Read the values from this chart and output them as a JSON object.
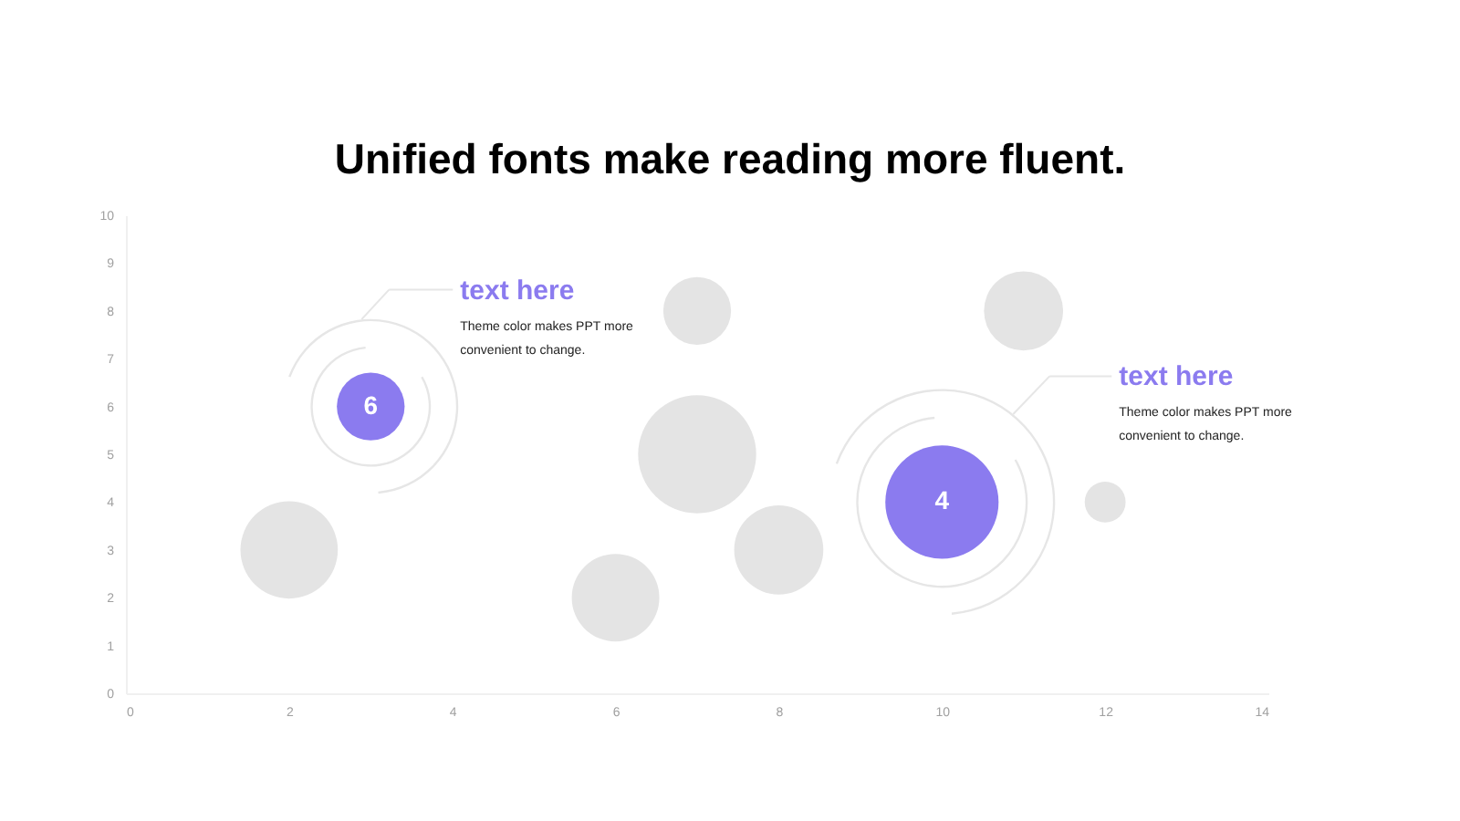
{
  "chart_data": {
    "type": "bubble",
    "title": "Unified fonts make reading more fluent.",
    "x": [
      2,
      3,
      6,
      7,
      7,
      8,
      10,
      11,
      12
    ],
    "values": [
      3,
      6,
      2,
      8,
      5,
      3,
      4,
      8,
      4
    ],
    "sizes": [
      0.68,
      0.33,
      0.55,
      0.33,
      1,
      0.57,
      0.92,
      0.45,
      0.12
    ],
    "colors": [
      "#e4e4e4",
      "#8b7bef",
      "#e4e4e4",
      "#e4e4e4",
      "#e4e4e4",
      "#e4e4e4",
      "#8b7bef",
      "#e4e4e4",
      "#e4e4e4"
    ],
    "value_labels": [
      null,
      "6",
      null,
      null,
      null,
      null,
      "4",
      null,
      null
    ],
    "xlim": [
      0,
      14
    ],
    "xticks": [
      0,
      2,
      4,
      6,
      8,
      10,
      12,
      14
    ],
    "ylim": [
      0,
      10
    ],
    "yticks": [
      0,
      1,
      2,
      3,
      4,
      5,
      6,
      7,
      8,
      9,
      10
    ],
    "grid": false,
    "annotations": [
      "text here",
      "Theme color makes PPT more convenient to change.",
      "text here",
      "Theme color makes PPT more convenient to change."
    ]
  }
}
